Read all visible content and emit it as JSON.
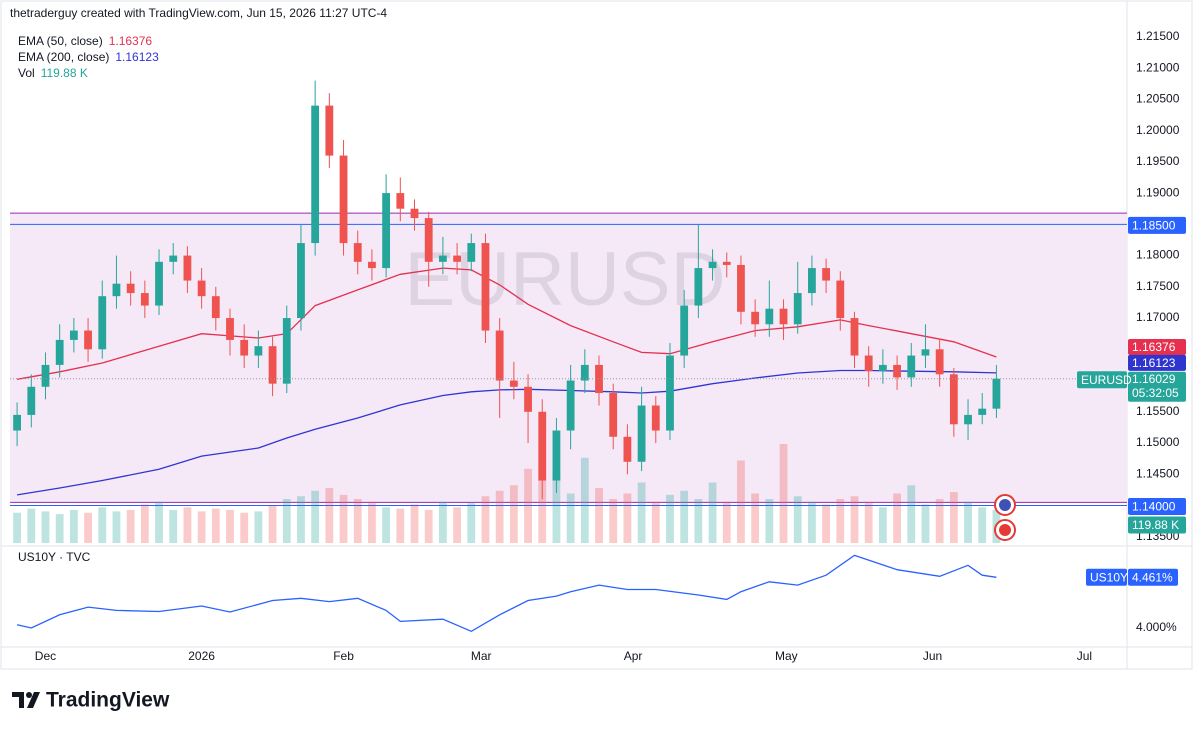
{
  "header": {
    "title": "thetraderguy created with TradingView.com, Jun 15, 2026 11:27 UTC-4"
  },
  "chart_data": [
    {
      "type": "candlestick",
      "symbol": "EURUSD",
      "countdown": "05:32:05",
      "open": [
        1.152,
        1.1545,
        1.159,
        1.1625,
        1.1665,
        1.168,
        1.165,
        1.1735,
        1.1755,
        1.174,
        1.172,
        1.179,
        1.18,
        1.176,
        1.1735,
        1.17,
        1.1665,
        1.164,
        1.1655,
        1.1595,
        1.17,
        1.182,
        1.204,
        1.196,
        1.182,
        1.179,
        1.178,
        1.19,
        1.1875,
        1.186,
        1.179,
        1.18,
        1.179,
        1.182,
        1.168,
        1.16,
        1.159,
        1.155,
        1.144,
        1.152,
        1.16,
        1.1625,
        1.158,
        1.151,
        1.147,
        1.156,
        1.152,
        1.164,
        1.172,
        1.178,
        1.179,
        1.1785,
        1.171,
        1.169,
        1.1715,
        1.169,
        1.174,
        1.178,
        1.176,
        1.17,
        1.164,
        1.1615,
        1.1625,
        1.1605,
        1.164,
        1.165,
        1.161,
        1.153,
        1.1545,
        1.1555
      ],
      "high": [
        1.1565,
        1.161,
        1.1645,
        1.169,
        1.17,
        1.17,
        1.176,
        1.18,
        1.1775,
        1.176,
        1.181,
        1.182,
        1.1815,
        1.178,
        1.175,
        1.1715,
        1.169,
        1.168,
        1.167,
        1.172,
        1.185,
        1.208,
        1.206,
        1.1985,
        1.184,
        1.181,
        1.193,
        1.1925,
        1.189,
        1.187,
        1.183,
        1.182,
        1.1835,
        1.1835,
        1.17,
        1.163,
        1.161,
        1.157,
        1.154,
        1.1625,
        1.165,
        1.164,
        1.1595,
        1.153,
        1.159,
        1.1575,
        1.166,
        1.1745,
        1.185,
        1.181,
        1.1805,
        1.18,
        1.173,
        1.176,
        1.173,
        1.179,
        1.18,
        1.1795,
        1.1775,
        1.171,
        1.1655,
        1.165,
        1.164,
        1.166,
        1.169,
        1.1665,
        1.162,
        1.157,
        1.158,
        1.1625
      ],
      "low": [
        1.1495,
        1.1525,
        1.157,
        1.1605,
        1.1645,
        1.163,
        1.1635,
        1.1715,
        1.172,
        1.17,
        1.1705,
        1.177,
        1.174,
        1.1715,
        1.168,
        1.164,
        1.162,
        1.162,
        1.1575,
        1.158,
        1.168,
        1.18,
        1.194,
        1.18,
        1.177,
        1.176,
        1.1765,
        1.1855,
        1.184,
        1.175,
        1.177,
        1.177,
        1.1775,
        1.166,
        1.154,
        1.157,
        1.15,
        1.141,
        1.142,
        1.149,
        1.158,
        1.156,
        1.149,
        1.145,
        1.1455,
        1.15,
        1.1505,
        1.162,
        1.17,
        1.176,
        1.1765,
        1.169,
        1.167,
        1.167,
        1.1665,
        1.1675,
        1.172,
        1.174,
        1.168,
        1.162,
        1.159,
        1.1595,
        1.1585,
        1.159,
        1.162,
        1.159,
        1.151,
        1.1505,
        1.153,
        1.154
      ],
      "close": [
        1.1545,
        1.159,
        1.1625,
        1.1665,
        1.168,
        1.165,
        1.1735,
        1.1755,
        1.174,
        1.172,
        1.179,
        1.18,
        1.176,
        1.1735,
        1.17,
        1.1665,
        1.164,
        1.1655,
        1.1595,
        1.17,
        1.182,
        1.204,
        1.196,
        1.182,
        1.179,
        1.178,
        1.19,
        1.1875,
        1.186,
        1.179,
        1.18,
        1.179,
        1.182,
        1.168,
        1.16,
        1.159,
        1.155,
        1.144,
        1.152,
        1.16,
        1.1625,
        1.158,
        1.151,
        1.147,
        1.156,
        1.152,
        1.164,
        1.172,
        1.178,
        1.179,
        1.1785,
        1.171,
        1.169,
        1.1715,
        1.169,
        1.174,
        1.178,
        1.176,
        1.17,
        1.164,
        1.1615,
        1.1625,
        1.1605,
        1.164,
        1.165,
        1.161,
        1.153,
        1.1545,
        1.1555,
        1.16029
      ],
      "up_color": "#26a69a",
      "down_color": "#ef5350",
      "series": [
        {
          "name": "EMA (50, close)",
          "color": "#e5304f",
          "x": [
            0,
            3,
            6,
            10,
            13,
            17,
            19,
            21,
            24,
            27,
            30,
            32,
            34,
            36,
            39,
            42,
            44,
            46,
            49,
            52,
            55,
            58,
            60,
            63,
            66,
            69
          ],
          "values": [
            1.1602,
            1.1614,
            1.1628,
            1.1655,
            1.1675,
            1.1668,
            1.1675,
            1.172,
            1.1745,
            1.177,
            1.178,
            1.1777,
            1.1753,
            1.1722,
            1.1688,
            1.1662,
            1.1645,
            1.1643,
            1.1662,
            1.168,
            1.1686,
            1.1697,
            1.1688,
            1.1675,
            1.1662,
            1.16376
          ]
        },
        {
          "name": "EMA (200, close)",
          "color": "#3035d0",
          "x": [
            0,
            3,
            6,
            10,
            13,
            17,
            19,
            21,
            24,
            27,
            30,
            32,
            34,
            36,
            39,
            42,
            44,
            46,
            49,
            52,
            55,
            58,
            60,
            63,
            66,
            69
          ],
          "values": [
            1.1417,
            1.1428,
            1.144,
            1.1458,
            1.1479,
            1.1492,
            1.1508,
            1.1522,
            1.154,
            1.1561,
            1.1576,
            1.1582,
            1.1585,
            1.1586,
            1.1584,
            1.1582,
            1.158,
            1.1583,
            1.1595,
            1.1604,
            1.1612,
            1.1616,
            1.1616,
            1.1615,
            1.1614,
            1.16123
          ]
        }
      ],
      "volume": {
        "name": "Vol",
        "color": "#26a69a",
        "last_label": "119.88 K",
        "vlim": [
          0,
          400
        ],
        "values": [
          110,
          125,
          115,
          105,
          120,
          110,
          130,
          115,
          120,
          140,
          150,
          120,
          130,
          115,
          125,
          120,
          110,
          115,
          135,
          160,
          170,
          190,
          200,
          175,
          160,
          150,
          130,
          125,
          140,
          120,
          150,
          130,
          145,
          170,
          190,
          210,
          270,
          230,
          250,
          180,
          310,
          200,
          160,
          180,
          220,
          150,
          175,
          190,
          160,
          220,
          150,
          300,
          180,
          160,
          360,
          170,
          150,
          140,
          160,
          170,
          150,
          130,
          180,
          210,
          140,
          160,
          185,
          150,
          130,
          119.88
        ]
      },
      "levels": [
        {
          "value": 1.185,
          "label": "1.18500",
          "color": "#2962ff"
        },
        {
          "value": 1.14,
          "label": "1.14000",
          "color": "#2962ff"
        }
      ],
      "zone": {
        "top": 1.1868,
        "bottom": 1.1405,
        "color": "#9c27b0",
        "fill": "#f5e9f7"
      },
      "xlim": [
        -0.5,
        78.2
      ],
      "xticks": [
        {
          "value": 2,
          "label": "Dec"
        },
        {
          "value": 13,
          "label": "2026"
        },
        {
          "value": 23,
          "label": "Feb"
        },
        {
          "value": 32.7,
          "label": "Mar"
        },
        {
          "value": 43.4,
          "label": "Apr"
        },
        {
          "value": 54.2,
          "label": "May"
        },
        {
          "value": 64.5,
          "label": "Jun"
        },
        {
          "value": 75.2,
          "label": "Jul"
        }
      ],
      "ylim": [
        1.134,
        1.2161
      ],
      "yticks": [
        {
          "value": 1.215,
          "label": "1.21500"
        },
        {
          "value": 1.21,
          "label": "1.21000"
        },
        {
          "value": 1.205,
          "label": "1.20500"
        },
        {
          "value": 1.2,
          "label": "1.20000"
        },
        {
          "value": 1.195,
          "label": "1.19500"
        },
        {
          "value": 1.19,
          "label": "1.19000"
        },
        {
          "value": 1.18,
          "label": "1.18000"
        },
        {
          "value": 1.175,
          "label": "1.17500"
        },
        {
          "value": 1.17,
          "label": "1.17000"
        },
        {
          "value": 1.155,
          "label": "1.15500"
        },
        {
          "value": 1.15,
          "label": "1.15000"
        },
        {
          "value": 1.145,
          "label": "1.14500"
        },
        {
          "value": 1.135,
          "label": "1.13500"
        }
      ]
    },
    {
      "type": "line",
      "title": "US10Y · TVC",
      "series": [
        {
          "name": "US10Y",
          "color": "#2962ff",
          "last_label": "4.461%",
          "x": [
            0,
            1,
            3,
            5,
            7,
            10,
            13,
            15,
            18,
            20,
            22,
            24,
            26,
            27,
            30,
            32,
            34,
            36,
            38,
            39,
            41,
            43,
            45,
            48,
            50,
            51,
            53,
            55,
            57,
            59,
            62,
            65,
            67,
            68,
            69
          ],
          "values": [
            4.03,
            4.0,
            4.12,
            4.19,
            4.16,
            4.15,
            4.2,
            4.145,
            4.25,
            4.27,
            4.24,
            4.27,
            4.16,
            4.06,
            4.08,
            3.97,
            4.12,
            4.25,
            4.29,
            4.33,
            4.39,
            4.35,
            4.35,
            4.3,
            4.26,
            4.33,
            4.42,
            4.39,
            4.48,
            4.66,
            4.53,
            4.47,
            4.57,
            4.48,
            4.461
          ]
        }
      ],
      "xlim": [
        -0.5,
        78.2
      ],
      "ylim": [
        3.845,
        4.727
      ],
      "yticks": [
        {
          "value": 4,
          "label": "4.000%"
        }
      ]
    }
  ],
  "footer": {
    "brand": "TradingView"
  }
}
